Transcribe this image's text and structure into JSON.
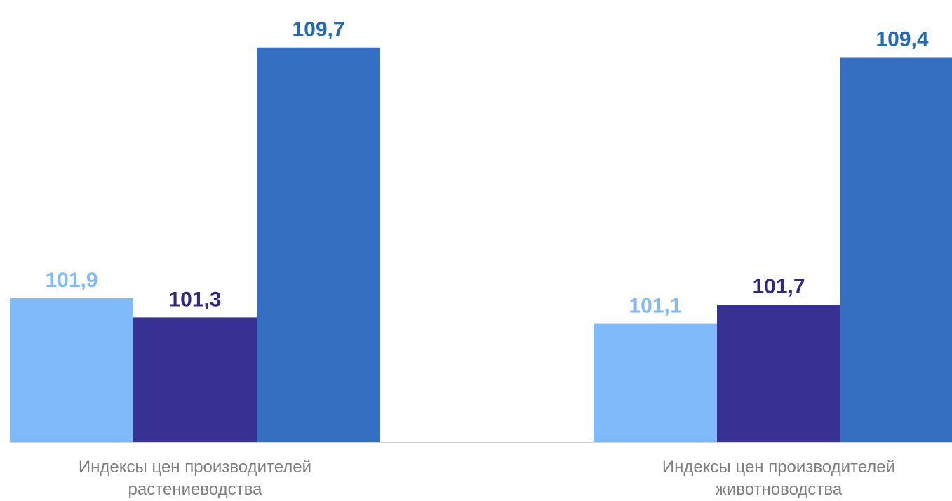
{
  "chart_data": {
    "type": "bar",
    "categories": [
      [
        "Индексы цен производителей",
        "растениеводства"
      ],
      [
        "Индексы цен производителей",
        "животноводства"
      ]
    ],
    "series": [
      {
        "values": [
          101.9,
          101.1
        ],
        "labels": [
          "101,9",
          "101,1"
        ],
        "color": "#7fbafa",
        "label_color": "#7fbafa"
      },
      {
        "values": [
          101.3,
          101.7
        ],
        "labels": [
          "101,3",
          "101,7"
        ],
        "color": "#373193",
        "label_color": "#2e2a84"
      },
      {
        "values": [
          109.7,
          109.4
        ],
        "labels": [
          "109,7",
          "109,4"
        ],
        "color": "#356fc2",
        "label_color": "#1f6bb9"
      }
    ],
    "ylim": [
      97.4,
      110.0
    ],
    "grid": false,
    "axis_color": "#d0d0d0"
  }
}
